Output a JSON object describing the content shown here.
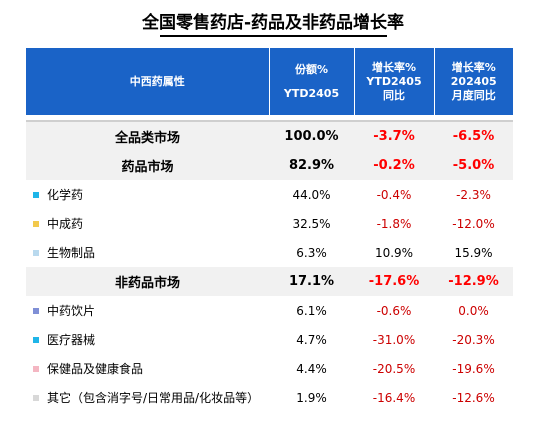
{
  "title": "全国零售药店-药品及非药品增长率",
  "header": {
    "col1": "中西药属性",
    "col2_l1": "份额%",
    "col2_l2": "YTD2405",
    "col3_l1": "增长率%",
    "col3_l2": "YTD2405",
    "col3_l3": "同比",
    "col4_l1": "增长率%",
    "col4_l2": "202405",
    "col4_l3": "月度同比"
  },
  "colors": {
    "header_bg": "#1a63c7",
    "negative": "#cc0000",
    "group_bg": "#f1f1f1"
  },
  "rows": [
    {
      "name": "全品类市场",
      "share": "100.0%",
      "ytd": "-3.7%",
      "month": "-6.5%"
    },
    {
      "name": "药品市场",
      "share": "82.9%",
      "ytd": "-0.2%",
      "month": "-5.0%"
    },
    {
      "name": "化学药",
      "share": "44.0%",
      "ytd": "-0.4%",
      "month": "-2.3%",
      "marker": "#1fb5e8"
    },
    {
      "name": "中成药",
      "share": "32.5%",
      "ytd": "-1.8%",
      "month": "-12.0%",
      "marker": "#f2c94c"
    },
    {
      "name": "生物制品",
      "share": "6.3%",
      "ytd": "10.9%",
      "month": "15.9%",
      "marker": "#b9d9ee"
    },
    {
      "name": "非药品市场",
      "share": "17.1%",
      "ytd": "-17.6%",
      "month": "-12.9%"
    },
    {
      "name": "中药饮片",
      "share": "6.1%",
      "ytd": "-0.6%",
      "month": "0.0%",
      "marker": "#7f8fd6"
    },
    {
      "name": "医疗器械",
      "share": "4.7%",
      "ytd": "-31.0%",
      "month": "-20.3%",
      "marker": "#1fb5e8"
    },
    {
      "name": "保健品及健康食品",
      "share": "4.4%",
      "ytd": "-20.5%",
      "month": "-19.6%",
      "marker": "#f4b6c2"
    },
    {
      "name": "其它（包含消字号/日常用品/化妆品等）",
      "share": "1.9%",
      "ytd": "-16.4%",
      "month": "-12.6%",
      "marker": "#d8d8d8"
    }
  ]
}
